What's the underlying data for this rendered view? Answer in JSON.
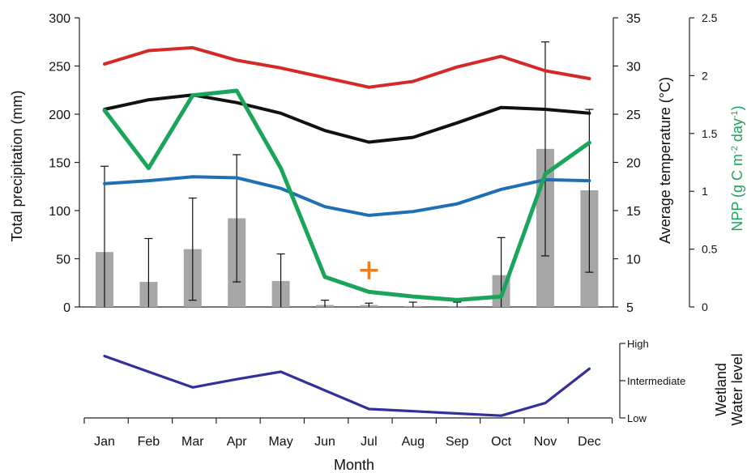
{
  "chart_data": [
    {
      "type": "bar+line",
      "x": {
        "categories": [
          "Jan",
          "Feb",
          "Mar",
          "Apr",
          "May",
          "Jun",
          "Jul",
          "Aug",
          "Sep",
          "Oct",
          "Nov",
          "Dec"
        ]
      },
      "axes": {
        "left": {
          "label": "Total precipitation (mm)",
          "range": [
            0,
            300
          ],
          "ticks": [
            "0",
            "50",
            "100",
            "150",
            "200",
            "250",
            "300"
          ]
        },
        "right1": {
          "label": "Average temperature (°C)",
          "range": [
            5,
            35
          ],
          "ticks": [
            "5",
            "10",
            "15",
            "20",
            "25",
            "30",
            "35"
          ]
        },
        "right2": {
          "label": "NPP (g C m⁻² day⁻¹)",
          "range": [
            0,
            2.5
          ],
          "ticks": [
            "0",
            "0.5",
            "1",
            "1.5",
            "2",
            "2.5"
          ],
          "label_color": "#1aa55a"
        }
      },
      "bars": {
        "axis": "left",
        "color": "#a6a6a6",
        "values": [
          57,
          26,
          60,
          92,
          27,
          2,
          2,
          1,
          1,
          33,
          164,
          121
        ],
        "error_high": [
          146,
          71,
          113,
          158,
          55,
          7,
          4,
          5,
          5,
          72,
          275,
          205
        ],
        "error_low": [
          0,
          0,
          7,
          26,
          0,
          0,
          0,
          0,
          0,
          0,
          53,
          36
        ]
      },
      "lines": [
        {
          "axis": "right1",
          "color": "#d42a27",
          "values": [
            30.2,
            31.6,
            31.9,
            30.6,
            29.8,
            28.8,
            27.8,
            28.4,
            29.9,
            31.0,
            29.5,
            28.7
          ]
        },
        {
          "axis": "right1",
          "color": "#111111",
          "values": [
            25.5,
            26.5,
            27.0,
            26.2,
            25.1,
            23.3,
            22.1,
            22.6,
            24.1,
            25.7,
            25.5,
            25.1
          ]
        },
        {
          "axis": "right1",
          "color": "#1f6fb5",
          "values": [
            17.8,
            18.1,
            18.5,
            18.4,
            17.3,
            15.4,
            14.5,
            14.9,
            15.7,
            17.2,
            18.2,
            18.1
          ]
        },
        {
          "axis": "right2",
          "color": "#1aa55a",
          "values": [
            1.7,
            1.2,
            1.83,
            1.87,
            1.2,
            0.26,
            0.13,
            0.09,
            0.06,
            0.09,
            1.15,
            1.42
          ]
        }
      ],
      "marker": {
        "symbol": "+",
        "color": "#f07c1e",
        "month": "Jul",
        "value_right1": 8.8
      }
    },
    {
      "type": "line",
      "y_axis": {
        "title_lines": [
          "Wetland",
          "Water level"
        ],
        "levels": [
          "Low",
          "Intermediate",
          "High"
        ]
      },
      "line_color": "#34309a",
      "values": [
        0.83,
        0.62,
        0.41,
        0.52,
        0.62,
        0.37,
        0.12,
        0.09,
        0.06,
        0.03,
        0.2,
        0.66
      ],
      "x_title": "Month"
    }
  ]
}
